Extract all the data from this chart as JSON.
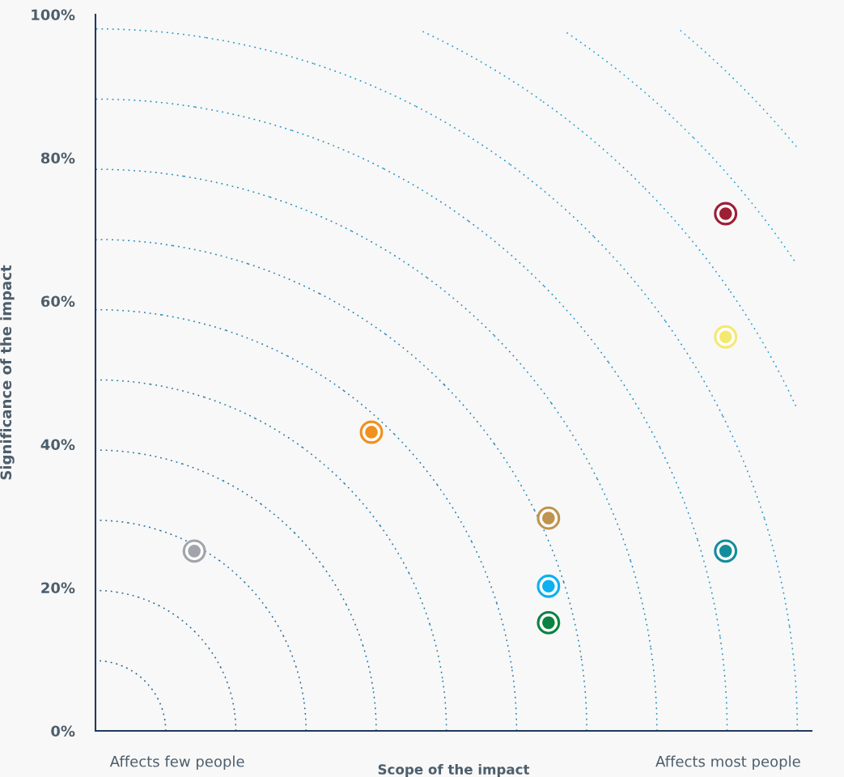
{
  "chart_data": {
    "type": "scatter",
    "xlabel": "Scope of the impact",
    "ylabel": "Significance of the impact",
    "annotations": [
      "Affects few people",
      "Affects most people"
    ],
    "categories": [
      null,
      null,
      null,
      null
    ],
    "ylim": [
      0,
      100
    ],
    "yticks": [
      {
        "value": 0,
        "label": "0%"
      },
      {
        "value": 20,
        "label": "20%"
      },
      {
        "value": 40,
        "label": "40%"
      },
      {
        "value": 60,
        "label": "60%"
      },
      {
        "value": 80,
        "label": "80%"
      },
      {
        "value": 100,
        "label": "100%"
      }
    ],
    "series": [
      {
        "color": "#a1a5ab",
        "values": [
          25.1,
          null,
          null,
          null
        ]
      },
      {
        "color": "#f0901e",
        "values": [
          null,
          41.7,
          null,
          null
        ]
      },
      {
        "color": "#bf944f",
        "values": [
          null,
          null,
          29.7,
          null
        ]
      },
      {
        "color": "#0eb0ef",
        "values": [
          null,
          null,
          20.2,
          null
        ]
      },
      {
        "color": "#0b8340",
        "values": [
          null,
          null,
          15.1,
          null
        ]
      },
      {
        "color": "#138d9c",
        "values": [
          null,
          null,
          null,
          25.1
        ]
      },
      {
        "color": "#9e1f34",
        "values": [
          null,
          null,
          null,
          72.2
        ]
      },
      {
        "color": "#f5e870",
        "values": [
          null,
          null,
          null,
          55.0
        ]
      }
    ],
    "marker": "circle"
  }
}
